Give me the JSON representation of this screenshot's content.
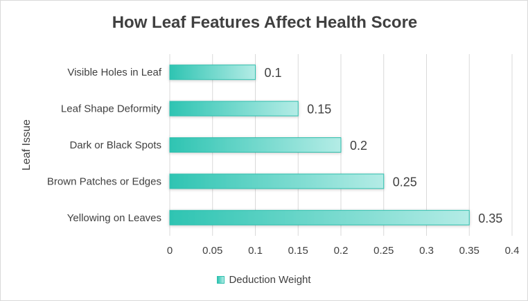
{
  "chart_data": {
    "type": "bar",
    "orientation": "horizontal",
    "title": "How Leaf Features Affect Health Score",
    "ylabel": "Leaf Issue",
    "xlabel": "",
    "categories": [
      "Yellowing on Leaves",
      "Brown Patches or Edges",
      "Dark or Black Spots",
      "Leaf Shape Deformity",
      "Visible Holes in Leaf"
    ],
    "series": [
      {
        "name": "Deduction Weight",
        "values": [
          0.35,
          0.25,
          0.2,
          0.15,
          0.1
        ]
      }
    ],
    "data_labels": [
      "0.35",
      "0.25",
      "0.2",
      "0.15",
      "0.1"
    ],
    "xlim": [
      0,
      0.4
    ],
    "x_ticks": [
      "0",
      "0.05",
      "0.1",
      "0.15",
      "0.2",
      "0.25",
      "0.3",
      "0.35",
      "0.4"
    ],
    "grid": true,
    "legend_position": "bottom",
    "colors": {
      "bar_start": "#2ec4b2",
      "bar_end": "#b4ece6",
      "bar_border": "#2fbfad",
      "grid": "#d9d9d9",
      "text": "#404040"
    }
  }
}
